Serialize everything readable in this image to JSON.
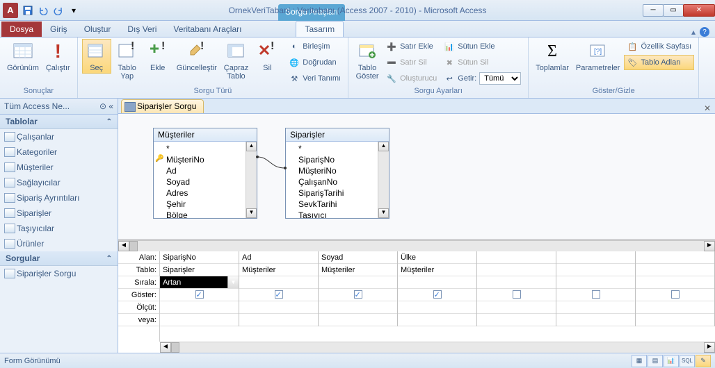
{
  "titlebar": {
    "context_tools": "Sorgu Araçları",
    "title": "OrnekVeriTabani : Veritabanı (Access 2007 - 2010)  -  Microsoft Access"
  },
  "tabs": {
    "file": "Dosya",
    "home": "Giriş",
    "create": "Oluştur",
    "external": "Dış Veri",
    "dbtools": "Veritabanı Araçları",
    "design": "Tasarım"
  },
  "ribbon": {
    "results": {
      "view": "Görünüm",
      "run": "Çalıştır",
      "label": "Sonuçlar"
    },
    "querytype": {
      "select": "Seç",
      "maketable": "Tablo\nYap",
      "append": "Ekle",
      "update": "Güncelleştir",
      "crosstab": "Çapraz\nTablo",
      "delete": "Sil",
      "union": "Birleşim",
      "passthrough": "Doğrudan",
      "datadef": "Veri Tanımı",
      "label": "Sorgu Türü"
    },
    "querysetup": {
      "showtable": "Tablo\nGöster",
      "insertrow": "Satır Ekle",
      "deleterow": "Satır Sil",
      "builder": "Oluşturucu",
      "insertcol": "Sütun Ekle",
      "deletecol": "Sütun Sil",
      "return": "Getir:",
      "return_value": "Tümü",
      "label": "Sorgu Ayarları"
    },
    "showhide": {
      "totals": "Toplamlar",
      "params": "Parametreler",
      "propsheet": "Özellik Sayfası",
      "tablenames": "Tablo Adları",
      "label": "Göster/Gizle"
    }
  },
  "navpane": {
    "header": "Tüm Access Ne...",
    "tables_header": "Tablolar",
    "tables": [
      "Çalışanlar",
      "Kategoriler",
      "Müşteriler",
      "Sağlayıcılar",
      "Sipariş Ayrıntıları",
      "Siparişler",
      "Taşıyıcılar",
      "Ürünler"
    ],
    "queries_header": "Sorgular",
    "queries": [
      "Siparişler Sorgu"
    ]
  },
  "doc": {
    "tab": "Siparişler Sorgu"
  },
  "fieldlists": {
    "musteriler": {
      "title": "Müşteriler",
      "fields": [
        "*",
        "MüşteriNo",
        "Ad",
        "Soyad",
        "Adres",
        "Şehir",
        "Bölge"
      ]
    },
    "siparisler": {
      "title": "Siparişler",
      "fields": [
        "*",
        "SiparişNo",
        "MüşteriNo",
        "ÇalışanNo",
        "SiparişTarihi",
        "SevkTarihi",
        "Taşıyıcı"
      ]
    }
  },
  "grid": {
    "labels": {
      "field": "Alan:",
      "table": "Tablo:",
      "sort": "Sırala:",
      "show": "Göster:",
      "criteria": "Ölçüt:",
      "or": "veya:"
    },
    "cols": [
      {
        "field": "SiparişNo",
        "table": "Siparişler",
        "sort": "Artan",
        "show": true
      },
      {
        "field": "Ad",
        "table": "Müşteriler",
        "sort": "",
        "show": true
      },
      {
        "field": "Soyad",
        "table": "Müşteriler",
        "sort": "",
        "show": true
      },
      {
        "field": "Ülke",
        "table": "Müşteriler",
        "sort": "",
        "show": true
      },
      {
        "field": "",
        "table": "",
        "sort": "",
        "show": false
      },
      {
        "field": "",
        "table": "",
        "sort": "",
        "show": false
      },
      {
        "field": "",
        "table": "",
        "sort": "",
        "show": false
      }
    ]
  },
  "statusbar": {
    "text": "Form Görünümü",
    "sql": "SQL"
  }
}
